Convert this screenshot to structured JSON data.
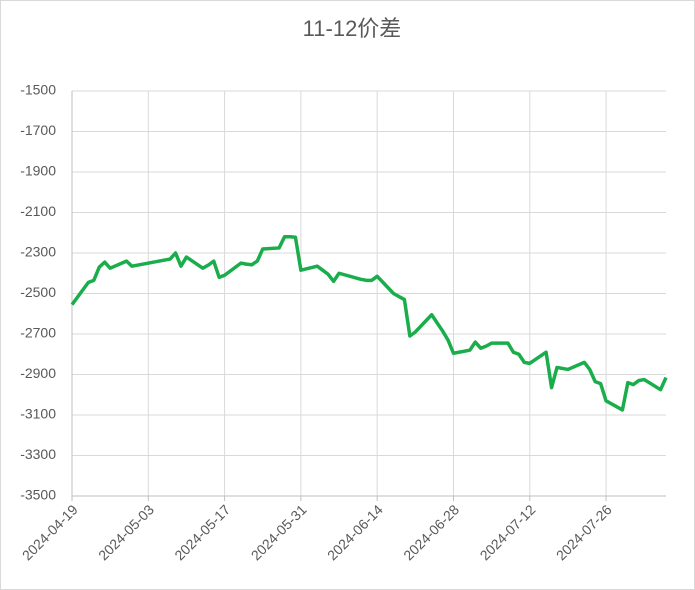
{
  "chart_data": {
    "type": "line",
    "title": "11-12价差",
    "x": [
      "2024-04-19",
      "2024-04-22",
      "2024-04-23",
      "2024-04-24",
      "2024-04-25",
      "2024-04-26",
      "2024-04-29",
      "2024-04-30",
      "2024-05-06",
      "2024-05-07",
      "2024-05-08",
      "2024-05-09",
      "2024-05-10",
      "2024-05-13",
      "2024-05-14",
      "2024-05-15",
      "2024-05-16",
      "2024-05-17",
      "2024-05-20",
      "2024-05-21",
      "2024-05-22",
      "2024-05-23",
      "2024-05-24",
      "2024-05-27",
      "2024-05-28",
      "2024-05-29",
      "2024-05-30",
      "2024-05-31",
      "2024-06-03",
      "2024-06-04",
      "2024-06-05",
      "2024-06-06",
      "2024-06-07",
      "2024-06-11",
      "2024-06-12",
      "2024-06-13",
      "2024-06-14",
      "2024-06-17",
      "2024-06-18",
      "2024-06-19",
      "2024-06-20",
      "2024-06-21",
      "2024-06-24",
      "2024-06-25",
      "2024-06-26",
      "2024-06-27",
      "2024-06-28",
      "2024-07-01",
      "2024-07-02",
      "2024-07-03",
      "2024-07-04",
      "2024-07-05",
      "2024-07-08",
      "2024-07-09",
      "2024-07-10",
      "2024-07-11",
      "2024-07-12",
      "2024-07-15",
      "2024-07-16",
      "2024-07-17",
      "2024-07-18",
      "2024-07-19",
      "2024-07-22",
      "2024-07-23",
      "2024-07-24",
      "2024-07-25",
      "2024-07-26",
      "2024-07-29",
      "2024-07-30",
      "2024-07-31",
      "2024-08-01",
      "2024-08-02",
      "2024-08-05",
      "2024-08-06"
    ],
    "series": [
      {
        "name": "11-12价差",
        "color": "#1aad4b",
        "values": [
          -2555,
          -2445,
          -2435,
          -2370,
          -2345,
          -2375,
          -2340,
          -2365,
          -2335,
          -2330,
          -2300,
          -2365,
          -2320,
          -2375,
          -2360,
          -2340,
          -2420,
          -2410,
          -2350,
          -2355,
          -2358,
          -2340,
          -2280,
          -2275,
          -2220,
          -2220,
          -2222,
          -2385,
          -2365,
          -2385,
          -2405,
          -2440,
          -2400,
          -2430,
          -2435,
          -2435,
          -2415,
          -2500,
          -2515,
          -2530,
          -2710,
          -2690,
          -2605,
          -2645,
          -2685,
          -2730,
          -2795,
          -2780,
          -2740,
          -2770,
          -2760,
          -2745,
          -2745,
          -2790,
          -2800,
          -2840,
          -2845,
          -2790,
          -2965,
          -2865,
          -2870,
          -2875,
          -2840,
          -2875,
          -2935,
          -2945,
          -3030,
          -3075,
          -2940,
          -2950,
          -2930,
          -2925,
          -2975,
          -2915
        ]
      }
    ],
    "xlim": [
      "2024-04-19",
      "2024-08-06"
    ],
    "xticks": [
      "2024-04-19",
      "2024-05-03",
      "2024-05-17",
      "2024-05-31",
      "2024-06-14",
      "2024-06-28",
      "2024-07-12",
      "2024-07-26"
    ],
    "ylim": [
      -3500,
      -1500
    ],
    "yticks": [
      -1500,
      -1700,
      -1900,
      -2100,
      -2300,
      -2500,
      -2700,
      -2900,
      -3100,
      -3300,
      -3500
    ],
    "grid": true
  }
}
